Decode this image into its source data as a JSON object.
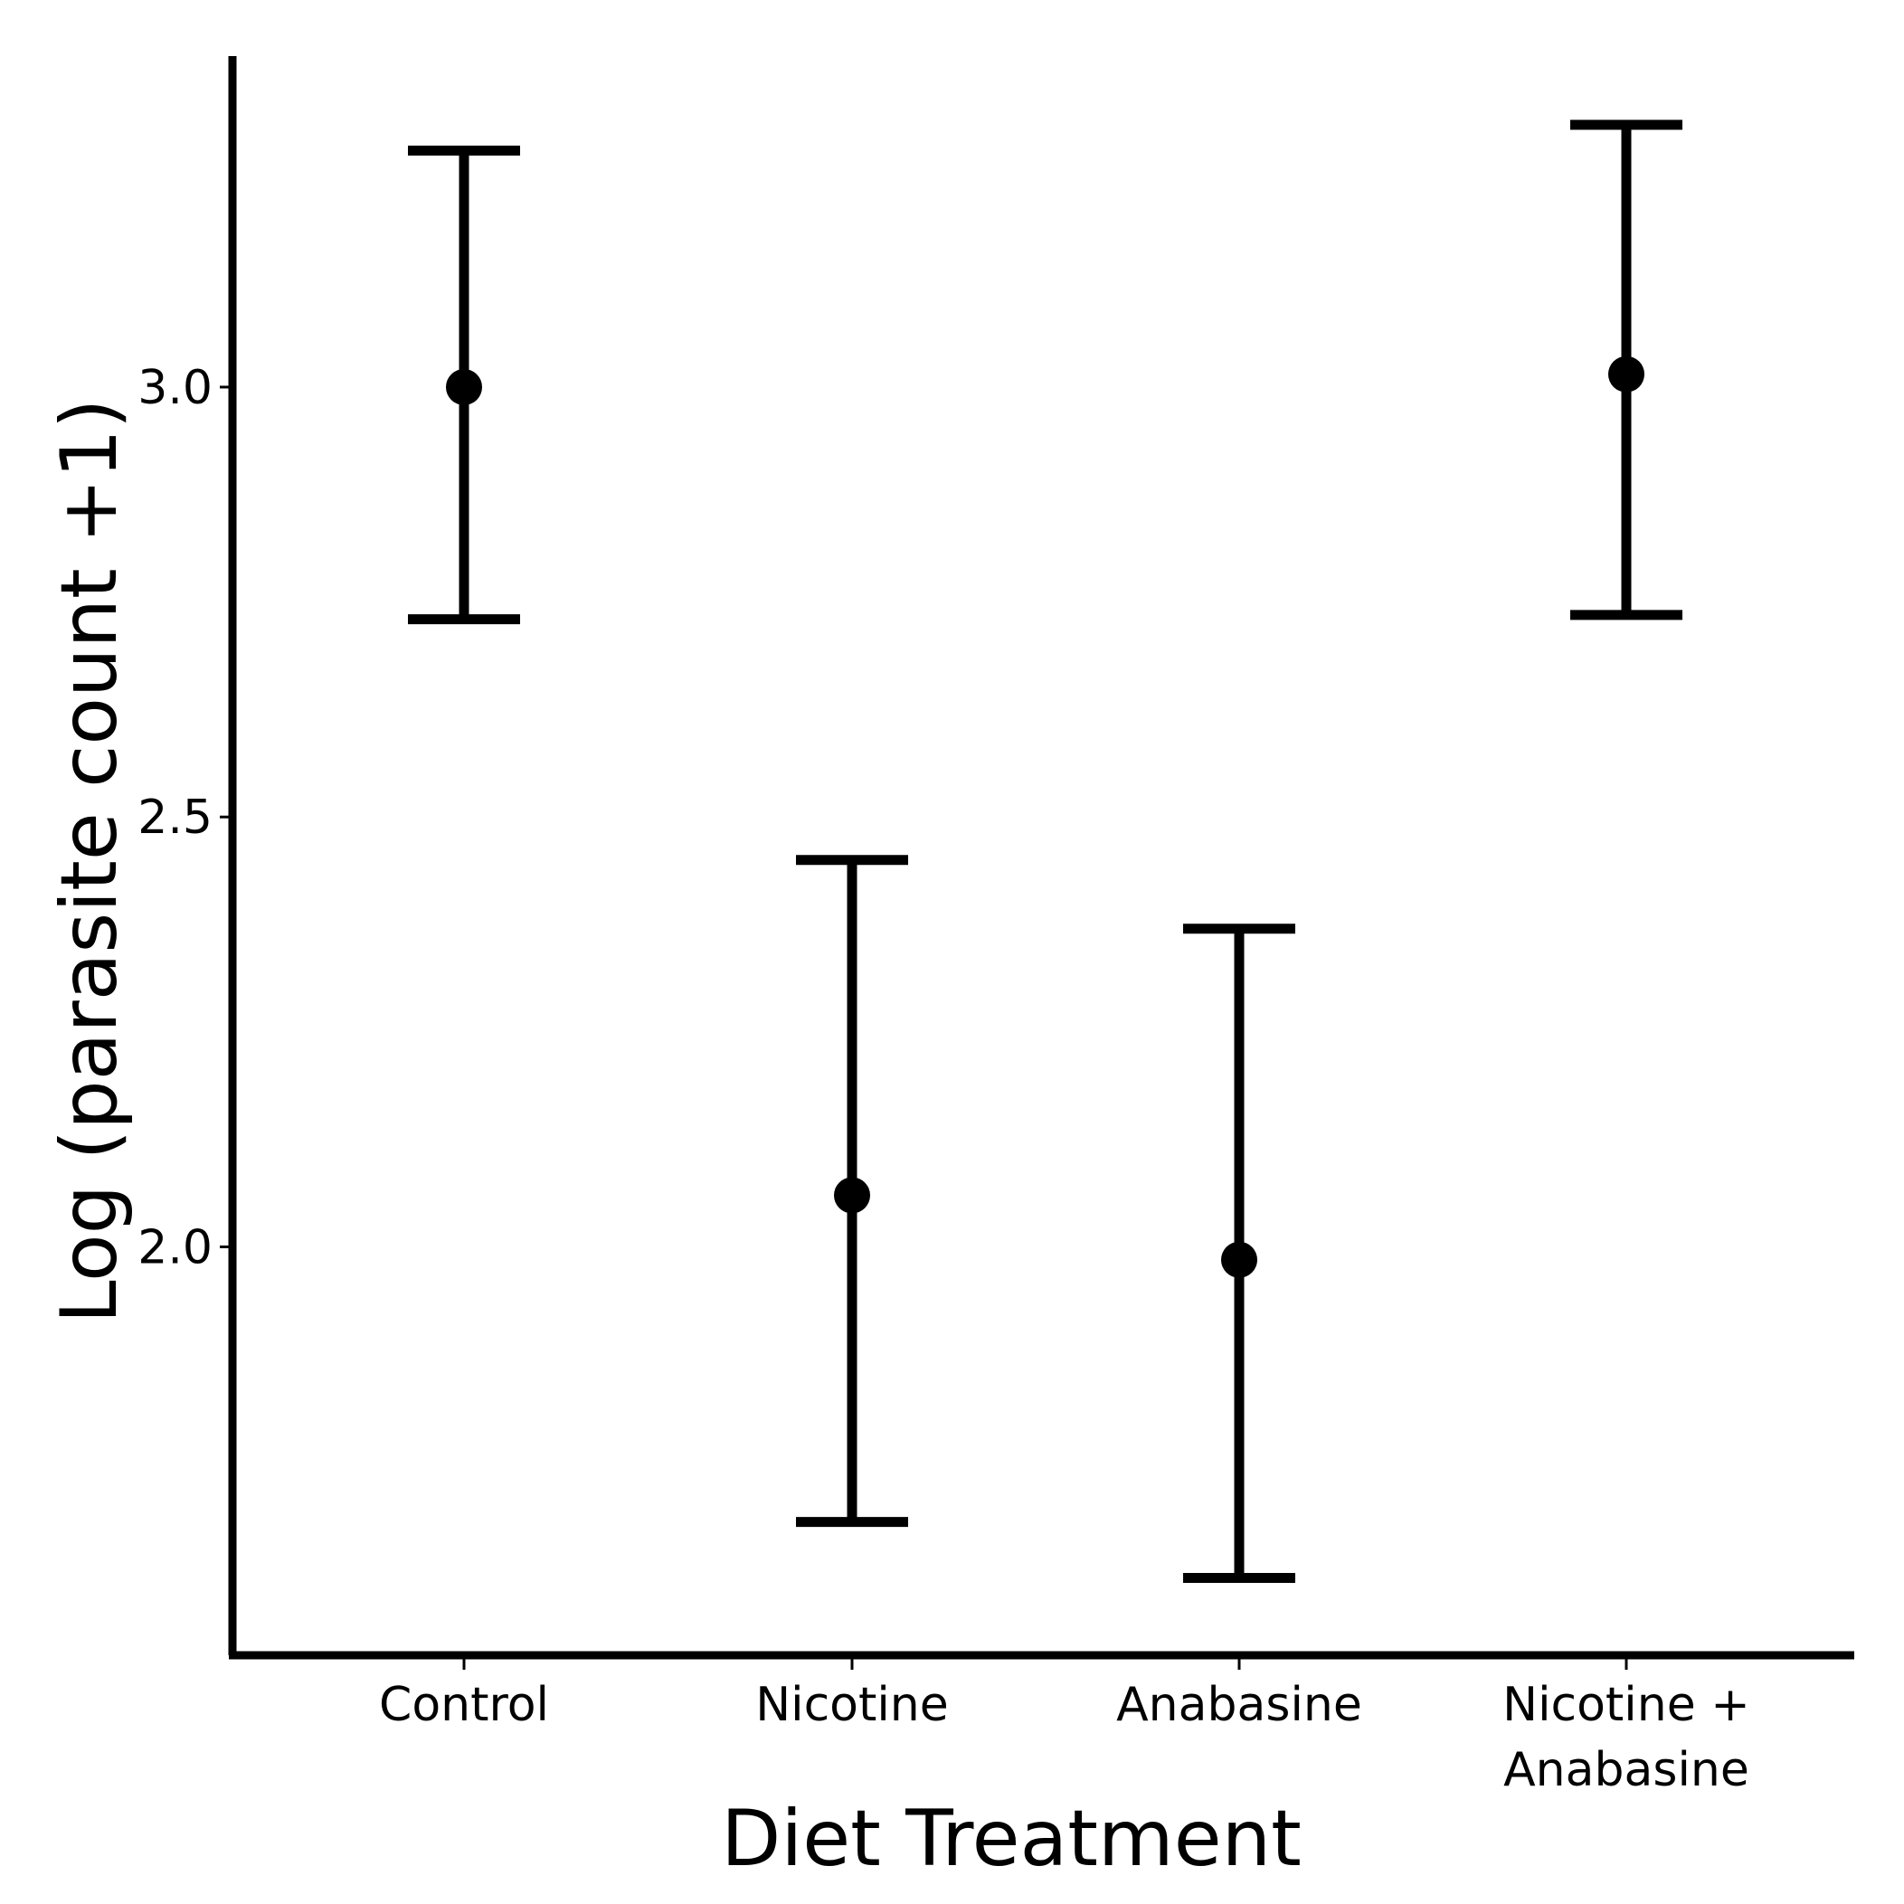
{
  "chart_data": {
    "type": "errorbar",
    "title": "",
    "xlabel": "Diet Treatment",
    "ylabel": "Log (parasite count +1)",
    "categories": [
      [
        "Control"
      ],
      [
        "Nicotine"
      ],
      [
        "Anabasine"
      ],
      [
        "Nicotine +",
        "Anabasine"
      ]
    ],
    "points": [
      {
        "category": "Control",
        "mean": 3.0,
        "lower": 2.73,
        "upper": 3.275
      },
      {
        "category": "Nicotine",
        "mean": 2.06,
        "lower": 1.68,
        "upper": 2.45
      },
      {
        "category": "Anabasine",
        "mean": 1.985,
        "lower": 1.615,
        "upper": 2.37
      },
      {
        "category": "Nicotine + Anabasine",
        "mean": 3.015,
        "lower": 2.735,
        "upper": 3.305
      }
    ],
    "ylim": [
      1.525,
      3.385
    ],
    "yticks": [
      2.0,
      2.5,
      3.0
    ],
    "ytick_labels": [
      "2.0",
      "2.5",
      "3.0"
    ],
    "grid": false,
    "legend": "none",
    "color": "#000000"
  }
}
